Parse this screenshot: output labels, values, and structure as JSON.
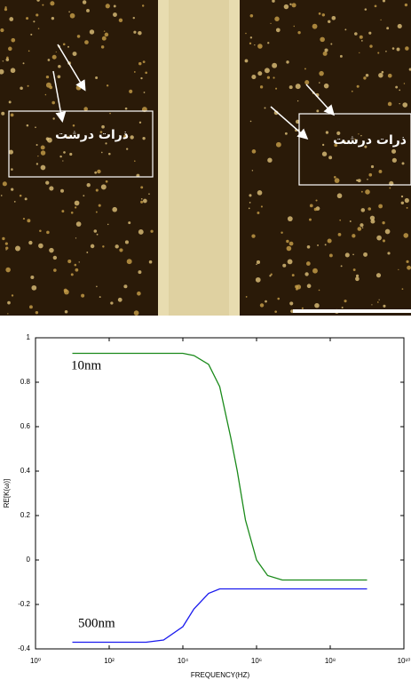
{
  "micrograph": {
    "labels": [
      "ذرات درشت",
      "ذرات درشت"
    ]
  },
  "chart_data": {
    "type": "line",
    "xlabel": "FREQUENCY(HZ)",
    "ylabel": "RE[K(ω)]",
    "xscale": "log",
    "x": [
      10,
      100,
      1000,
      3000,
      10000,
      20000,
      50000,
      100000,
      200000,
      300000,
      500000,
      1000000,
      2000000,
      5000000,
      10000000,
      100000000,
      1000000000
    ],
    "series": [
      {
        "name": "10nm",
        "color": "#1a8a1a",
        "values": [
          0.93,
          0.93,
          0.93,
          0.93,
          0.93,
          0.92,
          0.88,
          0.78,
          0.55,
          0.4,
          0.18,
          0.0,
          -0.07,
          -0.09,
          -0.09,
          -0.09,
          -0.09
        ]
      },
      {
        "name": "500nm",
        "color": "#1a1aee",
        "values": [
          -0.37,
          -0.37,
          -0.37,
          -0.36,
          -0.3,
          -0.22,
          -0.15,
          -0.13,
          -0.13,
          -0.13,
          -0.13,
          -0.13,
          -0.13,
          -0.13,
          -0.13,
          -0.13,
          -0.13
        ]
      }
    ],
    "xlim": [
      1,
      10000000000
    ],
    "xticks": [
      {
        "value": 1,
        "label": "10⁰"
      },
      {
        "value": 100,
        "label": "10²"
      },
      {
        "value": 10000,
        "label": "10⁴"
      },
      {
        "value": 1000000,
        "label": "10⁶"
      },
      {
        "value": 100000000,
        "label": "10⁸"
      },
      {
        "value": 10000000000,
        "label": "10¹⁰"
      }
    ],
    "ylim": [
      -0.4,
      1
    ],
    "yticks": [
      -0.4,
      -0.2,
      0,
      0.2,
      0.4,
      0.6,
      0.8,
      1
    ]
  }
}
